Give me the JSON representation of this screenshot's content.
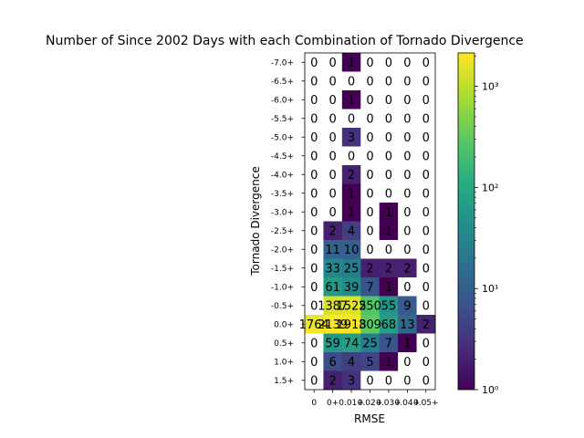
{
  "chart_data": {
    "type": "heatmap",
    "title": "Number of Since 2002 Days with each Combination of Tornado Divergence",
    "xlabel": "RMSE",
    "ylabel": "Tornado Divergence",
    "x_categories": [
      "0",
      "0+",
      "0.01+",
      "0.02+",
      "0.03+",
      "0.04+",
      "0.05+"
    ],
    "y_categories": [
      "-7.0+",
      "-6.5+",
      "-6.0+",
      "-5.5+",
      "-5.0+",
      "-4.5+",
      "-4.0+",
      "-3.5+",
      "-3.0+",
      "-2.5+",
      "-2.0+",
      "-1.5+",
      "-1.0+",
      "-0.5+",
      "0.0+",
      "0.5+",
      "1.0+",
      "1.5+"
    ],
    "values": [
      [
        0,
        0,
        1,
        0,
        0,
        0,
        0
      ],
      [
        0,
        0,
        0,
        0,
        0,
        0,
        0
      ],
      [
        0,
        0,
        1,
        0,
        0,
        0,
        0
      ],
      [
        0,
        0,
        0,
        0,
        0,
        0,
        0
      ],
      [
        0,
        0,
        3,
        0,
        0,
        0,
        0
      ],
      [
        0,
        0,
        0,
        0,
        0,
        0,
        0
      ],
      [
        0,
        0,
        2,
        0,
        0,
        0,
        0
      ],
      [
        0,
        0,
        1,
        0,
        0,
        0,
        0
      ],
      [
        0,
        0,
        1,
        0,
        1,
        0,
        0
      ],
      [
        0,
        2,
        4,
        0,
        1,
        0,
        0
      ],
      [
        0,
        11,
        10,
        0,
        0,
        0,
        0
      ],
      [
        0,
        33,
        25,
        2,
        2,
        2,
        0
      ],
      [
        0,
        61,
        39,
        7,
        1,
        0,
        0
      ],
      [
        0,
        1387,
        1525,
        250,
        55,
        9,
        0
      ],
      [
        1764,
        2139,
        1918,
        309,
        68,
        13,
        2
      ],
      [
        0,
        59,
        74,
        25,
        7,
        1,
        0
      ],
      [
        0,
        6,
        4,
        5,
        1,
        0,
        0
      ],
      [
        0,
        2,
        3,
        0,
        0,
        0,
        0
      ]
    ],
    "color_scale": "log",
    "colormap": "viridis",
    "colorbar_range": [
      1,
      2139
    ],
    "colorbar_ticks": [
      {
        "value": 1,
        "label": "10⁰"
      },
      {
        "value": 10,
        "label": "10¹"
      },
      {
        "value": 100,
        "label": "10²"
      },
      {
        "value": 1000,
        "label": "10³"
      }
    ],
    "zero_color": "#ffffff"
  }
}
